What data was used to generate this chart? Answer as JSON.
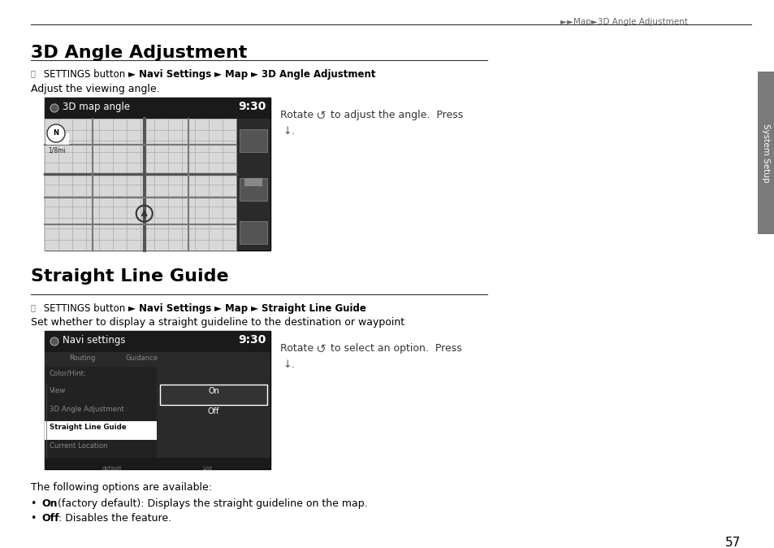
{
  "page_bg": "#ffffff",
  "header_text": "►►Map►3D Angle Adjustment",
  "header_color": "#666666",
  "section1_title": "3D Angle Adjustment",
  "section1_desc": "Adjust the viewing angle.",
  "section2_title": "Straight Line Guide",
  "section2_desc": "Set whether to display a straight guideline to the destination or waypoint",
  "intro2": "The following options are available:",
  "bullet1_pre": "• ",
  "bullet1_bold": "On",
  "bullet1_rest": " (factory default): Displays the straight guideline on the map.",
  "bullet2_pre": "• ",
  "bullet2_bold": "Off",
  "bullet2_rest": ": Disables the feature.",
  "page_number": "57",
  "sidebar_text": "System Setup",
  "sidebar_bg": "#7a7a7a",
  "text_color": "#000000",
  "img1_header": "3D map angle",
  "img1_time": "9:30",
  "img2_header": "Navi settings",
  "img2_time": "9:30",
  "note1_line1": "Rotate      to adjust the angle.  Press",
  "note2_line1": "Rotate      to select an option.  Press",
  "settings_icon": "Ⓢ",
  "bc1_parts": [
    [
      " SETTINGS button ",
      false
    ],
    [
      "► ",
      false
    ],
    [
      "Navi Settings ",
      true
    ],
    [
      "► ",
      false
    ],
    [
      "Map ",
      true
    ],
    [
      "► ",
      false
    ],
    [
      "3D Angle Adjustment",
      true
    ]
  ],
  "bc2_parts": [
    [
      " SETTINGS button ",
      false
    ],
    [
      "► ",
      false
    ],
    [
      "Navi Settings ",
      true
    ],
    [
      "► ",
      false
    ],
    [
      "Map ",
      true
    ],
    [
      "► ",
      false
    ],
    [
      "Straight Line Guide",
      true
    ]
  ]
}
